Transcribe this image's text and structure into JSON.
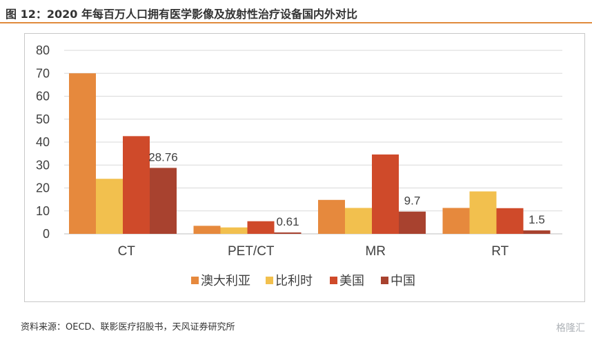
{
  "header": {
    "title": "图 12：2020 年每百万人口拥有医学影像及放射性治疗设备国内外对比"
  },
  "footer": {
    "source": "资料来源：OECD、联影医疗招股书，天风证券研究所",
    "watermark": "格隆汇"
  },
  "chart_data": {
    "type": "bar",
    "categories": [
      "CT",
      "PET/CT",
      "MR",
      "RT"
    ],
    "series": [
      {
        "name": "澳大利亚",
        "color": "#e6893d",
        "values": [
          70,
          3.5,
          14.8,
          11.3
        ]
      },
      {
        "name": "比利时",
        "color": "#f2c04e",
        "values": [
          24,
          2.8,
          11.3,
          18.5
        ]
      },
      {
        "name": "美国",
        "color": "#cf4a2a",
        "values": [
          42.6,
          5.5,
          34.6,
          11.2
        ]
      },
      {
        "name": "中国",
        "color": "#a8422f",
        "values": [
          28.76,
          0.61,
          9.7,
          1.5
        ]
      }
    ],
    "data_labels": [
      "28.76",
      "0.61",
      "9.7",
      "1.5"
    ],
    "ylim": [
      0,
      80
    ],
    "yticks": [
      "0",
      "10",
      "20",
      "30",
      "40",
      "50",
      "60",
      "70",
      "80"
    ],
    "grid": true,
    "legend": "bottom"
  }
}
